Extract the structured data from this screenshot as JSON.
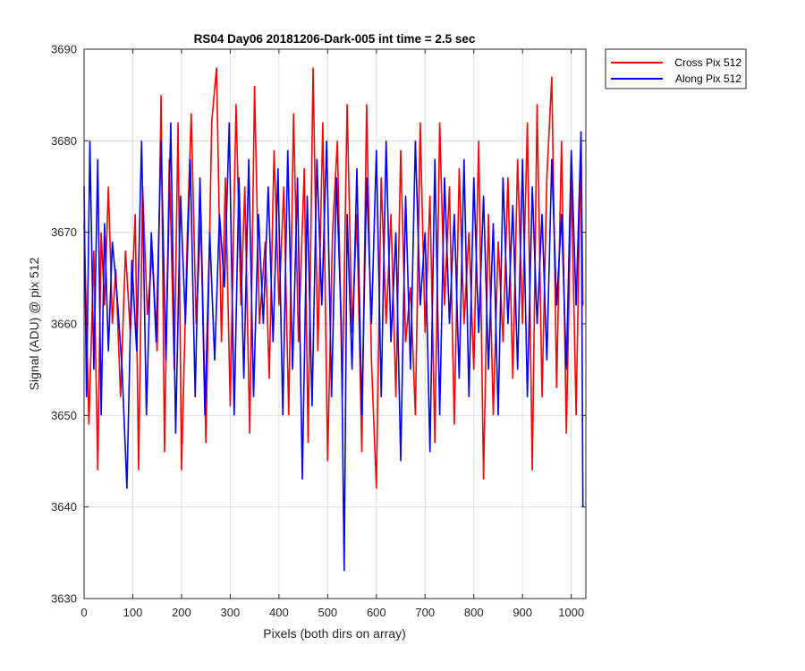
{
  "chart_data": {
    "type": "line",
    "title": "RS04 Day06 20181206-Dark-005 int time = 2.5 sec",
    "xlabel": "Pixels (both dirs on array)",
    "ylabel": "Signal (ADU) @ pix 512",
    "xlim": [
      0,
      1030
    ],
    "ylim": [
      3630,
      3690
    ],
    "xticks": [
      0,
      100,
      200,
      300,
      400,
      500,
      600,
      700,
      800,
      900,
      1000
    ],
    "yticks": [
      3630,
      3640,
      3650,
      3660,
      3670,
      3680,
      3690
    ],
    "grid": true,
    "legend_position": "outside-top-right",
    "series": [
      {
        "name": "Cross Pix 512",
        "color": "#ff0000",
        "x": [
          0,
          10,
          20,
          28,
          35,
          42,
          50,
          58,
          65,
          75,
          85,
          95,
          105,
          112,
          120,
          130,
          140,
          150,
          158,
          165,
          175,
          185,
          193,
          200,
          212,
          220,
          230,
          240,
          250,
          262,
          272,
          282,
          290,
          300,
          312,
          322,
          330,
          340,
          350,
          360,
          372,
          380,
          390,
          400,
          410,
          420,
          430,
          440,
          452,
          460,
          470,
          480,
          490,
          500,
          510,
          520,
          530,
          540,
          550,
          560,
          570,
          580,
          590,
          600,
          610,
          620,
          630,
          640,
          650,
          660,
          670,
          680,
          690,
          700,
          710,
          720,
          730,
          740,
          750,
          760,
          770,
          780,
          790,
          800,
          810,
          820,
          830,
          840,
          850,
          860,
          870,
          880,
          890,
          900,
          910,
          920,
          930,
          940,
          950,
          960,
          970,
          980,
          990,
          1000,
          1010,
          1020,
          1024
        ],
        "values": [
          3671,
          3649,
          3668,
          3644,
          3670,
          3662,
          3675,
          3660,
          3666,
          3652,
          3668,
          3659,
          3672,
          3644,
          3675,
          3661,
          3668,
          3657,
          3685,
          3646,
          3678,
          3655,
          3682,
          3644,
          3670,
          3683,
          3660,
          3672,
          3647,
          3682,
          3688,
          3658,
          3676,
          3651,
          3684,
          3662,
          3675,
          3648,
          3686,
          3660,
          3669,
          3654,
          3679,
          3662,
          3675,
          3650,
          3683,
          3658,
          3677,
          3647,
          3688,
          3657,
          3682,
          3645,
          3670,
          3680,
          3652,
          3684,
          3659,
          3672,
          3646,
          3684,
          3656,
          3642,
          3676,
          3660,
          3672,
          3652,
          3679,
          3658,
          3664,
          3650,
          3682,
          3659,
          3674,
          3647,
          3682,
          3662,
          3675,
          3649,
          3677,
          3660,
          3670,
          3655,
          3680,
          3643,
          3672,
          3650,
          3669,
          3658,
          3676,
          3654,
          3678,
          3660,
          3682,
          3644,
          3684,
          3652,
          3676,
          3687,
          3653,
          3680,
          3648,
          3676,
          3650,
          3681,
          3662
        ]
      },
      {
        "name": "Along Pix 512",
        "color": "#0000ff",
        "x": [
          0,
          5,
          12,
          20,
          28,
          35,
          42,
          50,
          58,
          68,
          78,
          88,
          98,
          108,
          118,
          128,
          138,
          148,
          158,
          168,
          178,
          188,
          198,
          208,
          218,
          228,
          238,
          248,
          258,
          268,
          278,
          288,
          298,
          308,
          318,
          328,
          338,
          348,
          358,
          368,
          378,
          388,
          398,
          408,
          418,
          428,
          438,
          448,
          458,
          468,
          478,
          488,
          498,
          508,
          518,
          528,
          534,
          540,
          550,
          560,
          570,
          580,
          590,
          600,
          610,
          620,
          630,
          640,
          650,
          660,
          670,
          680,
          690,
          700,
          710,
          720,
          730,
          740,
          750,
          760,
          770,
          780,
          790,
          800,
          810,
          820,
          830,
          840,
          850,
          860,
          870,
          880,
          890,
          900,
          910,
          920,
          930,
          940,
          950,
          960,
          970,
          980,
          990,
          1000,
          1010,
          1020,
          1024
        ],
        "values": [
          3675,
          3652,
          3680,
          3655,
          3678,
          3650,
          3671,
          3657,
          3669,
          3663,
          3655,
          3642,
          3667,
          3657,
          3680,
          3650,
          3670,
          3658,
          3680,
          3656,
          3682,
          3648,
          3674,
          3660,
          3678,
          3652,
          3676,
          3650,
          3670,
          3656,
          3672,
          3664,
          3682,
          3650,
          3676,
          3654,
          3678,
          3652,
          3672,
          3660,
          3675,
          3658,
          3677,
          3650,
          3679,
          3655,
          3676,
          3643,
          3674,
          3651,
          3678,
          3662,
          3680,
          3652,
          3676,
          3660,
          3633,
          3672,
          3655,
          3677,
          3650,
          3676,
          3660,
          3679,
          3652,
          3680,
          3658,
          3670,
          3645,
          3674,
          3655,
          3680,
          3662,
          3670,
          3646,
          3678,
          3650,
          3676,
          3660,
          3672,
          3654,
          3678,
          3652,
          3676,
          3659,
          3674,
          3655,
          3671,
          3650,
          3676,
          3660,
          3673,
          3655,
          3678,
          3652,
          3675,
          3660,
          3672,
          3656,
          3678,
          3662,
          3672,
          3655,
          3679,
          3662,
          3681,
          3640
        ]
      }
    ]
  }
}
